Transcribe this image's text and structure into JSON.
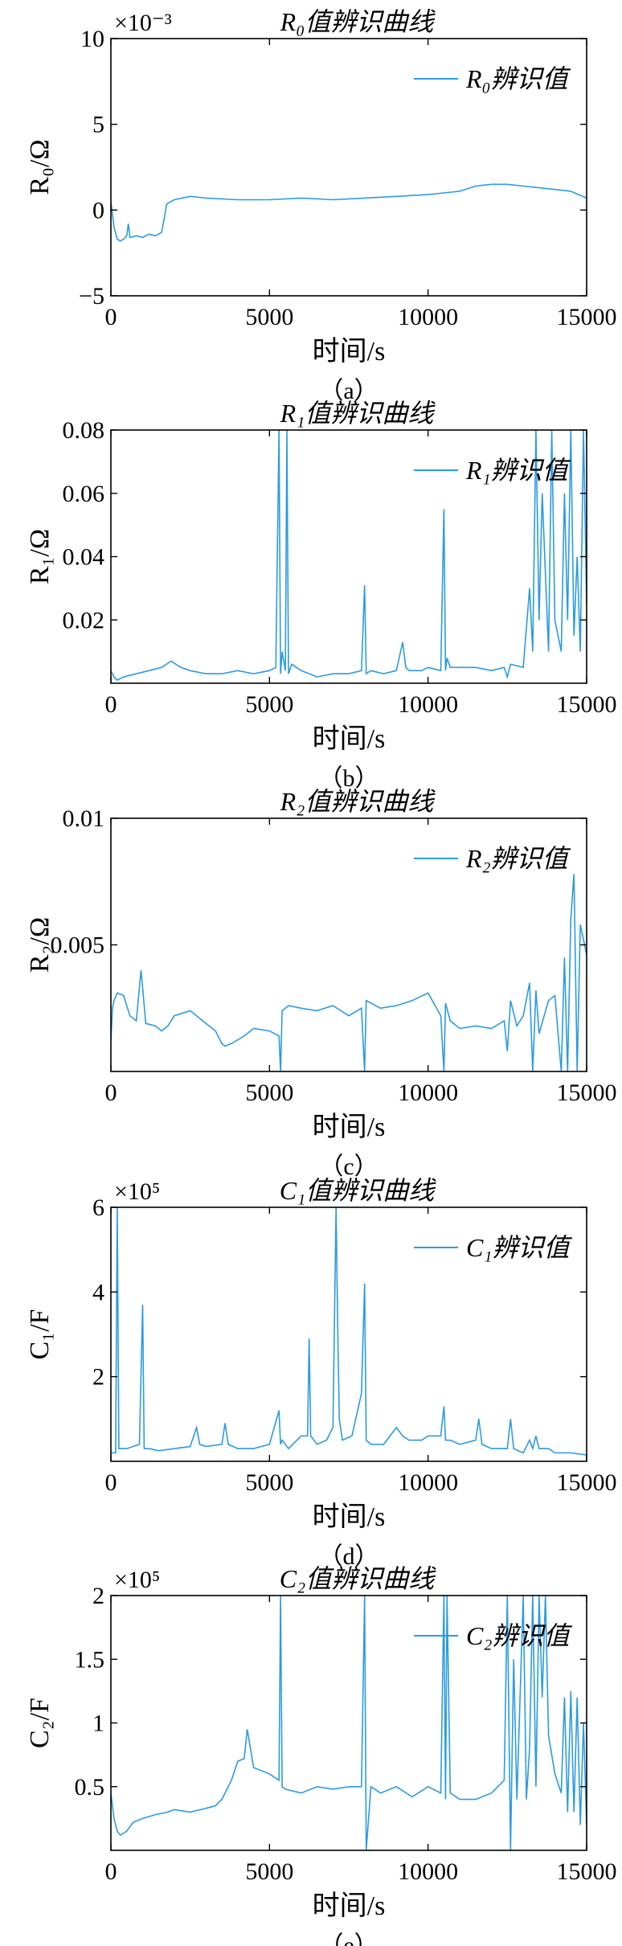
{
  "colors": {
    "series": "#2b9be3",
    "axis": "#000000",
    "background": "#ffffff"
  },
  "chart_data": [
    {
      "id": "a",
      "type": "line",
      "title": "R₀值辨识曲线",
      "caption": "（a）",
      "xlabel": "时间/s",
      "ylabel": "R₀/Ω",
      "exponent": "×10⁻³",
      "xlim": [
        0,
        15000
      ],
      "ylim": [
        -5,
        10
      ],
      "xticks": [
        0,
        5000,
        10000,
        15000
      ],
      "yticks": [
        -5,
        0,
        5,
        10
      ],
      "xtick_labels": [
        "0",
        "5000",
        "10000",
        "15000"
      ],
      "ytick_labels": [
        "−5",
        "0",
        "5",
        "10"
      ],
      "legend": "top-right",
      "series": [
        {
          "name": "R₀辨识值",
          "x": [
            0,
            100,
            200,
            300,
            400,
            500,
            550,
            600,
            800,
            1000,
            1200,
            1400,
            1600,
            1700,
            1750,
            1800,
            2000,
            2500,
            3000,
            4000,
            5000,
            6000,
            7000,
            8000,
            9000,
            10000,
            10500,
            11000,
            11500,
            12000,
            12500,
            13000,
            13500,
            14000,
            14500,
            15000
          ],
          "y": [
            0.5,
            -1.0,
            -1.7,
            -1.8,
            -1.7,
            -1.5,
            -0.8,
            -1.6,
            -1.5,
            -1.6,
            -1.4,
            -1.5,
            -1.3,
            -0.3,
            0.3,
            0.4,
            0.6,
            0.8,
            0.7,
            0.6,
            0.6,
            0.7,
            0.6,
            0.7,
            0.8,
            0.9,
            1.0,
            1.1,
            1.4,
            1.5,
            1.5,
            1.4,
            1.3,
            1.2,
            1.1,
            0.7
          ]
        }
      ]
    },
    {
      "id": "b",
      "type": "line",
      "title": "R₁值辨识曲线",
      "caption": "（b）",
      "xlabel": "时间/s",
      "ylabel": "R₁/Ω",
      "xlim": [
        0,
        15000
      ],
      "ylim": [
        0,
        0.08
      ],
      "xticks": [
        0,
        5000,
        10000,
        15000
      ],
      "yticks": [
        0.02,
        0.04,
        0.06,
        0.08
      ],
      "xtick_labels": [
        "0",
        "5000",
        "10000",
        "15000"
      ],
      "ytick_labels": [
        "0.02",
        "0.04",
        "0.06",
        "0.08"
      ],
      "legend": "top-right",
      "series": [
        {
          "name": "R₁辨识值",
          "x": [
            0,
            100,
            200,
            400,
            800,
            1200,
            1600,
            1900,
            2200,
            2500,
            3000,
            3500,
            4000,
            4500,
            5000,
            5200,
            5300,
            5350,
            5400,
            5500,
            5550,
            5600,
            5700,
            6000,
            6500,
            7000,
            7500,
            7900,
            8000,
            8050,
            8200,
            8600,
            9000,
            9200,
            9300,
            9400,
            9800,
            10000,
            10400,
            10500,
            10550,
            10600,
            10700,
            11000,
            11500,
            12000,
            12400,
            12500,
            12600,
            13000,
            13200,
            13300,
            13400,
            13500,
            13600,
            13800,
            13900,
            14000,
            14200,
            14300,
            14400,
            14500,
            14600,
            14700,
            14800,
            14900,
            15000
          ],
          "y": [
            0.004,
            0.002,
            0.001,
            0.002,
            0.003,
            0.004,
            0.005,
            0.007,
            0.005,
            0.004,
            0.003,
            0.003,
            0.004,
            0.003,
            0.004,
            0.005,
            0.08,
            0.003,
            0.01,
            0.004,
            0.08,
            0.003,
            0.006,
            0.004,
            0.002,
            0.003,
            0.003,
            0.004,
            0.031,
            0.003,
            0.004,
            0.003,
            0.004,
            0.013,
            0.005,
            0.004,
            0.004,
            0.005,
            0.004,
            0.055,
            0.004,
            0.008,
            0.005,
            0.005,
            0.005,
            0.004,
            0.005,
            0.002,
            0.006,
            0.005,
            0.03,
            0.01,
            0.08,
            0.02,
            0.06,
            0.01,
            0.08,
            0.02,
            0.01,
            0.06,
            0.02,
            0.08,
            0.015,
            0.04,
            0.01,
            0.08,
            0.025
          ]
        }
      ]
    },
    {
      "id": "c",
      "type": "line",
      "title": "R₂值辨识曲线",
      "caption": "（c）",
      "xlabel": "时间/s",
      "ylabel": "R₂/Ω",
      "xlim": [
        0,
        15000
      ],
      "ylim": [
        0,
        0.01
      ],
      "xticks": [
        0,
        5000,
        10000,
        15000
      ],
      "yticks": [
        0.005,
        0.01
      ],
      "xtick_labels": [
        "0",
        "5000",
        "10000",
        "15000"
      ],
      "ytick_labels": [
        "0.005",
        "0.01"
      ],
      "legend": "top-right",
      "series": [
        {
          "name": "R₂辨识值",
          "x": [
            0,
            50,
            100,
            200,
            400,
            600,
            800,
            950,
            1100,
            1400,
            1600,
            1800,
            2000,
            2500,
            3000,
            3300,
            3500,
            3600,
            3800,
            4200,
            4500,
            5000,
            5300,
            5350,
            5400,
            5600,
            6000,
            6500,
            7000,
            7500,
            7900,
            8000,
            8050,
            8500,
            9000,
            9500,
            10000,
            10400,
            10500,
            10550,
            10700,
            11000,
            11500,
            12000,
            12400,
            12500,
            12600,
            12800,
            13000,
            13200,
            13300,
            13400,
            13500,
            13800,
            14000,
            14200,
            14300,
            14400,
            14500,
            14600,
            14700,
            14800,
            14900,
            15000
          ],
          "y": [
            0.0012,
            0.0025,
            0.0028,
            0.0031,
            0.003,
            0.0022,
            0.002,
            0.004,
            0.0019,
            0.0018,
            0.0016,
            0.0018,
            0.0022,
            0.0024,
            0.0019,
            0.0016,
            0.0011,
            0.001,
            0.0011,
            0.0014,
            0.0017,
            0.0016,
            0.0014,
            0.0,
            0.0024,
            0.0026,
            0.0025,
            0.0024,
            0.0026,
            0.0022,
            0.0025,
            0.0,
            0.0028,
            0.0025,
            0.0026,
            0.0028,
            0.0031,
            0.0022,
            0.0,
            0.0027,
            0.002,
            0.0017,
            0.0018,
            0.0017,
            0.002,
            0.0008,
            0.0028,
            0.0018,
            0.0022,
            0.0035,
            0.0,
            0.0032,
            0.0015,
            0.0028,
            0.003,
            0.0,
            0.0045,
            0.0,
            0.006,
            0.0078,
            0.0,
            0.0058,
            0.0052,
            0.0046
          ]
        }
      ]
    },
    {
      "id": "d",
      "type": "line",
      "title": "C₁值辨识曲线",
      "caption": "（d）",
      "xlabel": "时间/s",
      "ylabel": "C₁/F",
      "exponent": "×10⁵",
      "xlim": [
        0,
        15000
      ],
      "ylim": [
        0,
        6
      ],
      "xticks": [
        0,
        5000,
        10000,
        15000
      ],
      "yticks": [
        2,
        4,
        6
      ],
      "xtick_labels": [
        "0",
        "5000",
        "10000",
        "15000"
      ],
      "ytick_labels": [
        "2",
        "4",
        "6"
      ],
      "legend": "top-right",
      "series": [
        {
          "name": "C₁辨识值",
          "x": [
            0,
            150,
            200,
            250,
            300,
            500,
            900,
            1000,
            1050,
            1200,
            1500,
            2000,
            2500,
            2700,
            2800,
            3000,
            3500,
            3600,
            3700,
            4000,
            4500,
            5000,
            5300,
            5350,
            5400,
            5600,
            6000,
            6200,
            6250,
            6300,
            6500,
            6800,
            7000,
            7100,
            7150,
            7200,
            7300,
            7600,
            7900,
            8000,
            8050,
            8200,
            8600,
            9000,
            9200,
            9400,
            9800,
            10000,
            10400,
            10500,
            10550,
            10700,
            11000,
            11500,
            11600,
            11700,
            12000,
            12500,
            12600,
            12700,
            13000,
            13200,
            13300,
            13400,
            13500,
            13800,
            14000,
            14500,
            15000
          ],
          "y": [
            0.2,
            0.2,
            6.0,
            0.3,
            0.3,
            0.3,
            0.4,
            3.7,
            0.3,
            0.3,
            0.25,
            0.3,
            0.35,
            0.8,
            0.4,
            0.35,
            0.4,
            0.9,
            0.4,
            0.3,
            0.3,
            0.4,
            1.2,
            0.4,
            0.5,
            0.3,
            0.6,
            0.6,
            2.9,
            0.6,
            0.4,
            0.5,
            0.8,
            6.0,
            3.2,
            1.0,
            0.5,
            0.6,
            1.6,
            4.2,
            0.5,
            0.4,
            0.4,
            0.8,
            0.6,
            0.5,
            0.5,
            0.6,
            0.6,
            1.3,
            0.5,
            0.5,
            0.4,
            0.5,
            1.0,
            0.4,
            0.3,
            0.3,
            1.0,
            0.3,
            0.2,
            0.5,
            0.3,
            0.6,
            0.3,
            0.3,
            0.2,
            0.2,
            0.15
          ]
        }
      ]
    },
    {
      "id": "e",
      "type": "line",
      "title": "C₂值辨识曲线",
      "caption": "（e）",
      "xlabel": "时间/s",
      "ylabel": "C₂/F",
      "exponent": "×10⁵",
      "xlim": [
        0,
        15000
      ],
      "ylim": [
        0,
        2
      ],
      "xticks": [
        0,
        5000,
        10000,
        15000
      ],
      "yticks": [
        0.5,
        1,
        1.5,
        2
      ],
      "xtick_labels": [
        "0",
        "5000",
        "10000",
        "15000"
      ],
      "ytick_labels": [
        "0.5",
        "1",
        "1.5",
        "2"
      ],
      "legend": "top-right",
      "series": [
        {
          "name": "C₂辨识值",
          "x": [
            0,
            100,
            200,
            300,
            500,
            700,
            1000,
            1400,
            1800,
            2000,
            2500,
            3000,
            3300,
            3500,
            3800,
            4000,
            4200,
            4300,
            4500,
            5000,
            5300,
            5350,
            5400,
            5500,
            6000,
            6500,
            7000,
            7500,
            7900,
            8000,
            8050,
            8200,
            8500,
            9000,
            9500,
            10000,
            10400,
            10500,
            10550,
            10600,
            10700,
            11000,
            11500,
            12000,
            12400,
            12500,
            12600,
            12700,
            12800,
            13000,
            13100,
            13200,
            13300,
            13400,
            13500,
            13600,
            13700,
            13800,
            14000,
            14200,
            14300,
            14400,
            14500,
            14600,
            14700,
            14800,
            14900,
            15000
          ],
          "y": [
            0.45,
            0.25,
            0.15,
            0.12,
            0.15,
            0.22,
            0.25,
            0.28,
            0.3,
            0.32,
            0.3,
            0.33,
            0.35,
            0.4,
            0.55,
            0.7,
            0.72,
            0.95,
            0.65,
            0.6,
            0.55,
            2.0,
            0.5,
            0.48,
            0.45,
            0.5,
            0.48,
            0.5,
            0.5,
            2.0,
            0.0,
            0.5,
            0.45,
            0.5,
            0.42,
            0.5,
            0.45,
            2.0,
            0.4,
            2.0,
            0.45,
            0.4,
            0.4,
            0.45,
            0.55,
            2.0,
            0.0,
            1.5,
            0.4,
            2.0,
            0.4,
            0.8,
            2.0,
            0.5,
            2.0,
            1.2,
            2.0,
            0.9,
            0.6,
            0.45,
            1.2,
            0.3,
            1.25,
            0.3,
            1.2,
            0.2,
            1.0,
            0.2
          ]
        }
      ]
    }
  ]
}
